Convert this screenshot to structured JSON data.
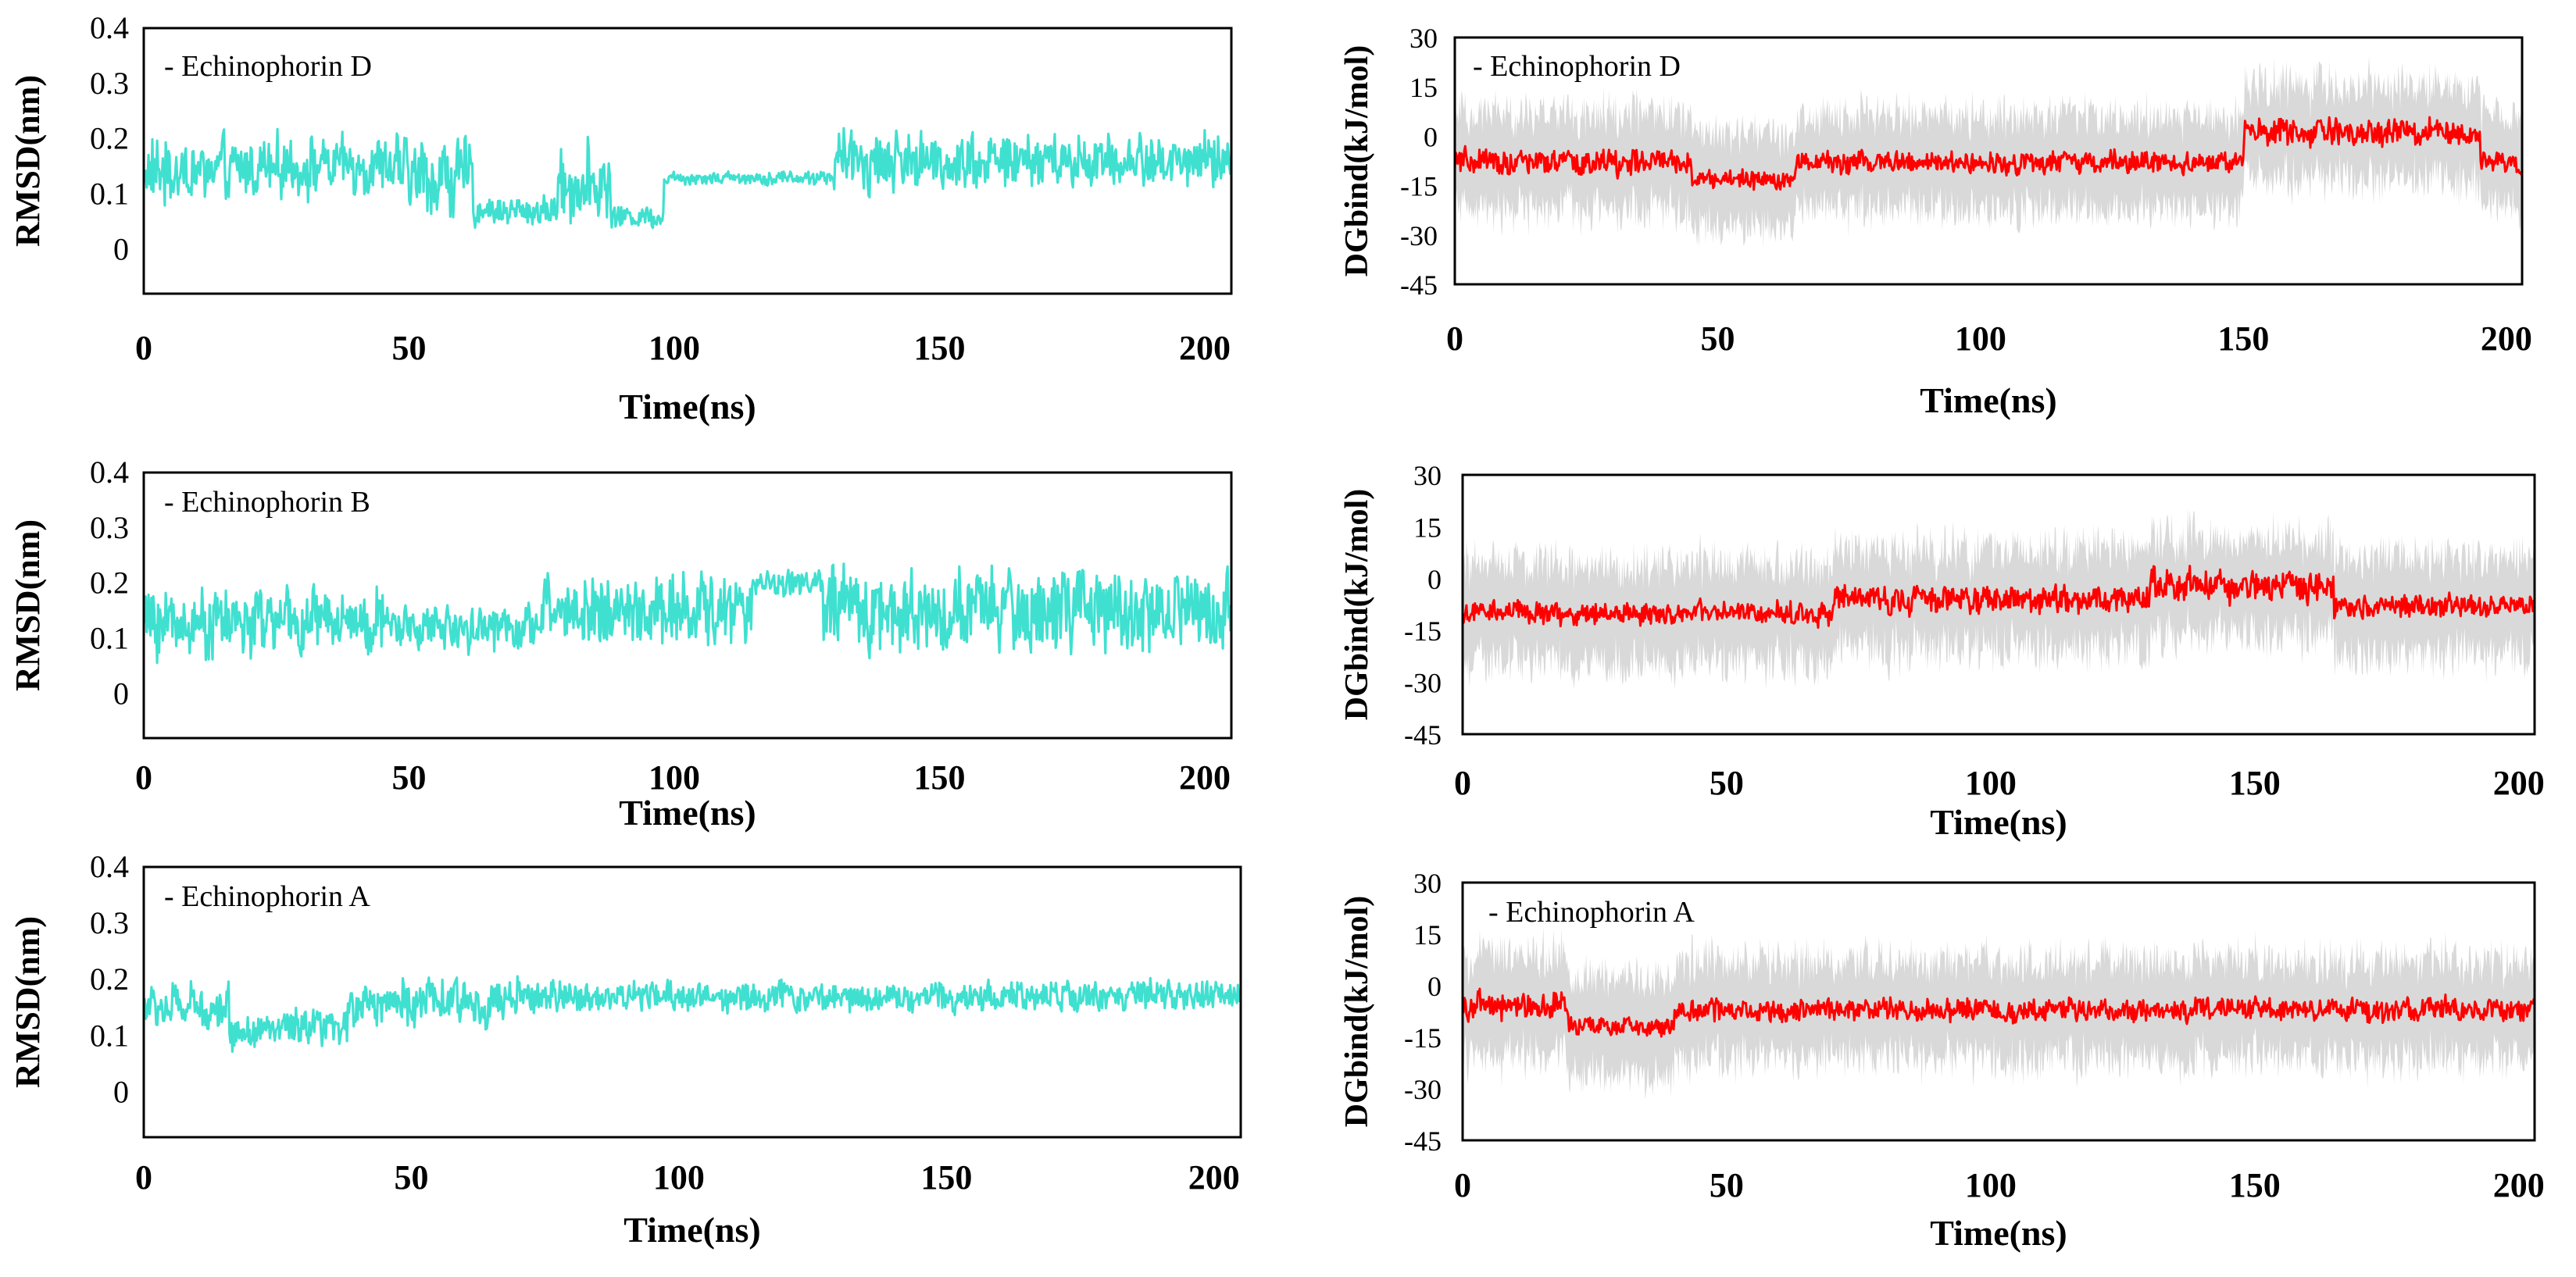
{
  "colors": {
    "rmsd": "#40e0d0",
    "dg_main": "#ff0000",
    "dg_band": "#d9d9d9",
    "frame": "#000000"
  },
  "chart_data": [
    {
      "type": "line",
      "id": "rmsd_d",
      "legend": "- Echinophorin D",
      "xlabel": "Time(ns)",
      "ylabel": "RMSD(nm)",
      "xlim": [
        0,
        205
      ],
      "ylim": [
        -0.08,
        0.4
      ],
      "xticks": [
        0,
        50,
        100,
        150,
        200
      ],
      "xtick_labels": [
        "0",
        "50",
        "100",
        "150",
        "200"
      ],
      "yticks": [
        0,
        0.1,
        0.2,
        0.3,
        0.4
      ],
      "ytick_labels": [
        "0",
        "0.1",
        "0.2",
        "0.3",
        "0.4"
      ],
      "series": [
        {
          "name": "Echinophorin D",
          "segments": [
            {
              "x0": 0,
              "x1": 19,
              "mean": 0.14,
              "amp": 0.09
            },
            {
              "x0": 19,
              "x1": 50,
              "mean": 0.15,
              "amp": 0.08
            },
            {
              "x0": 50,
              "x1": 62,
              "mean": 0.13,
              "amp": 0.1
            },
            {
              "x0": 62,
              "x1": 78,
              "mean": 0.07,
              "amp": 0.04
            },
            {
              "x0": 78,
              "x1": 88,
              "mean": 0.12,
              "amp": 0.1
            },
            {
              "x0": 88,
              "x1": 98,
              "mean": 0.06,
              "amp": 0.03
            },
            {
              "x0": 98,
              "x1": 130,
              "mean": 0.13,
              "amp": 0.02
            },
            {
              "x0": 130,
              "x1": 160,
              "mean": 0.16,
              "amp": 0.08
            },
            {
              "x0": 160,
              "x1": 205,
              "mean": 0.16,
              "amp": 0.07
            }
          ]
        }
      ]
    },
    {
      "type": "line",
      "id": "rmsd_b",
      "legend": "- Echinophorin B",
      "xlabel": "Time(ns)",
      "ylabel": "RMSD(nm)",
      "xlim": [
        0,
        205
      ],
      "ylim": [
        -0.08,
        0.4
      ],
      "xticks": [
        0,
        50,
        100,
        150,
        200
      ],
      "xtick_labels": [
        "0",
        "50",
        "100",
        "150",
        "200"
      ],
      "yticks": [
        0,
        0.1,
        0.2,
        0.3,
        0.4
      ],
      "ytick_labels": [
        "0",
        "0.1",
        "0.2",
        "0.3",
        "0.4"
      ],
      "series": [
        {
          "name": "Echinophorin B",
          "segments": [
            {
              "x0": 0,
              "x1": 45,
              "mean": 0.13,
              "amp": 0.09
            },
            {
              "x0": 45,
              "x1": 75,
              "mean": 0.12,
              "amp": 0.06
            },
            {
              "x0": 75,
              "x1": 115,
              "mean": 0.15,
              "amp": 0.1
            },
            {
              "x0": 115,
              "x1": 128,
              "mean": 0.2,
              "amp": 0.04
            },
            {
              "x0": 128,
              "x1": 205,
              "mean": 0.15,
              "amp": 0.11
            }
          ]
        }
      ]
    },
    {
      "type": "line",
      "id": "rmsd_a",
      "legend": "- Echinophorin A",
      "xlabel": "Time(ns)",
      "ylabel": "RMSD(nm)",
      "xlim": [
        0,
        205
      ],
      "ylim": [
        -0.08,
        0.4
      ],
      "xticks": [
        0,
        50,
        100,
        150,
        200
      ],
      "xtick_labels": [
        "0",
        "50",
        "100",
        "150",
        "200"
      ],
      "yticks": [
        0,
        0.1,
        0.2,
        0.3,
        0.4
      ],
      "ytick_labels": [
        "0",
        "0.1",
        "0.2",
        "0.3",
        "0.4"
      ],
      "series": [
        {
          "name": "Echinophorin A",
          "segments": [
            {
              "x0": 0,
              "x1": 16,
              "mean": 0.15,
              "amp": 0.06
            },
            {
              "x0": 16,
              "x1": 38,
              "mean": 0.11,
              "amp": 0.05
            },
            {
              "x0": 38,
              "x1": 70,
              "mean": 0.16,
              "amp": 0.06
            },
            {
              "x0": 70,
              "x1": 205,
              "mean": 0.17,
              "amp": 0.04
            }
          ]
        }
      ]
    },
    {
      "type": "line",
      "id": "dg_d",
      "legend": "- Echinophorin D",
      "xlabel": "Time(ns)",
      "ylabel": "DGbind(kJ/mol)",
      "xlim": [
        0,
        203
      ],
      "ylim": [
        -45,
        30
      ],
      "xticks": [
        0,
        50,
        100,
        150,
        200
      ],
      "xtick_labels": [
        "0",
        "50",
        "100",
        "150",
        "200"
      ],
      "yticks": [
        -45,
        -30,
        -15,
        0,
        15,
        30
      ],
      "ytick_labels": [
        "-45",
        "-30",
        "-15",
        "0",
        "15",
        "30"
      ],
      "series": [
        {
          "name": "DGbind",
          "segments": [
            {
              "x0": 0,
              "x1": 45,
              "mean": -8,
              "amp": 6
            },
            {
              "x0": 45,
              "x1": 65,
              "mean": -13,
              "amp": 5
            },
            {
              "x0": 65,
              "x1": 150,
              "mean": -8,
              "amp": 5
            },
            {
              "x0": 150,
              "x1": 195,
              "mean": 1,
              "amp": 6
            },
            {
              "x0": 195,
              "x1": 203,
              "mean": -8,
              "amp": 5
            }
          ]
        },
        {
          "name": "DGbind range",
          "band_width": 14
        }
      ]
    },
    {
      "type": "line",
      "id": "dg_b",
      "legend": "",
      "xlabel": "Time(ns)",
      "ylabel": "DGbind(kJ/mol)",
      "xlim": [
        0,
        203
      ],
      "ylim": [
        -45,
        30
      ],
      "xticks": [
        0,
        50,
        100,
        150,
        200
      ],
      "xtick_labels": [
        "0",
        "50",
        "100",
        "150",
        "200"
      ],
      "yticks": [
        -45,
        -30,
        -15,
        0,
        15,
        30
      ],
      "ytick_labels": [
        "-45",
        "-30",
        "-15",
        "0",
        "15",
        "30"
      ],
      "series": [
        {
          "name": "DGbind",
          "segments": [
            {
              "x0": 0,
              "x1": 70,
              "mean": -10,
              "amp": 5
            },
            {
              "x0": 70,
              "x1": 130,
              "mean": -6,
              "amp": 6
            },
            {
              "x0": 130,
              "x1": 165,
              "mean": -2,
              "amp": 7
            },
            {
              "x0": 165,
              "x1": 203,
              "mean": -8,
              "amp": 5
            }
          ]
        },
        {
          "name": "DGbind range",
          "band_width": 14
        }
      ]
    },
    {
      "type": "line",
      "id": "dg_a",
      "legend": "- Echinophorin A",
      "xlabel": "Time(ns)",
      "ylabel": "DGbind(kJ/mol)",
      "xlim": [
        0,
        203
      ],
      "ylim": [
        -45,
        30
      ],
      "xticks": [
        0,
        50,
        100,
        150,
        200
      ],
      "xtick_labels": [
        "0",
        "50",
        "100",
        "150",
        "200"
      ],
      "yticks": [
        -45,
        -30,
        -15,
        0,
        15,
        30
      ],
      "ytick_labels": [
        "-45",
        "-30",
        "-15",
        "0",
        "15",
        "30"
      ],
      "series": [
        {
          "name": "DGbind",
          "segments": [
            {
              "x0": 0,
              "x1": 20,
              "mean": -6,
              "amp": 6
            },
            {
              "x0": 20,
              "x1": 40,
              "mean": -12,
              "amp": 4
            },
            {
              "x0": 40,
              "x1": 203,
              "mean": -7,
              "amp": 5
            }
          ]
        },
        {
          "name": "DGbind range",
          "band_width": 14
        }
      ]
    }
  ]
}
